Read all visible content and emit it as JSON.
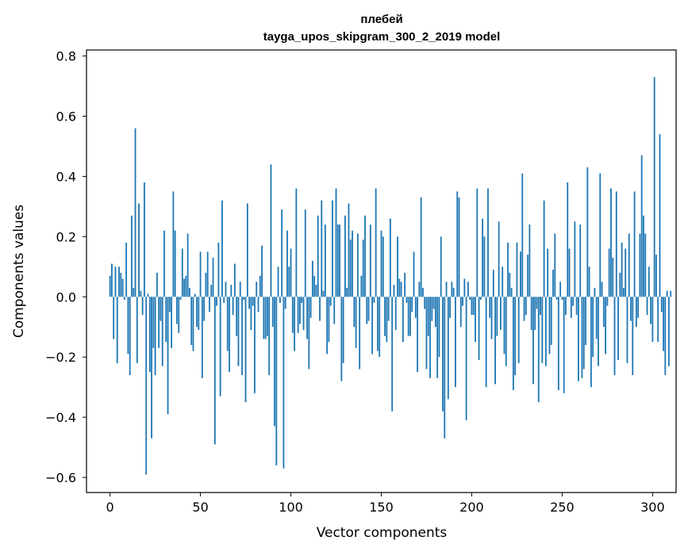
{
  "chart_data": {
    "type": "bar",
    "title": "плебей",
    "subtitle": "tayga_upos_skipgram_300_2_2019 model",
    "xlabel": "Vector components",
    "ylabel": "Components values",
    "xlim": [
      -13,
      313
    ],
    "ylim": [
      -0.65,
      0.82
    ],
    "xticks": [
      0,
      50,
      100,
      150,
      200,
      250,
      300
    ],
    "yticks": [
      -0.6,
      -0.4,
      -0.2,
      0.0,
      0.2,
      0.4,
      0.6,
      0.8
    ],
    "ytick_labels": [
      "−0.6",
      "−0.4",
      "−0.2",
      "0.0",
      "0.2",
      "0.4",
      "0.6",
      "0.8"
    ],
    "xtick_labels": [
      "0",
      "50",
      "100",
      "150",
      "200",
      "250",
      "300"
    ],
    "bar_color": "#1f77b4",
    "values": [
      0.07,
      0.11,
      -0.14,
      0.1,
      -0.22,
      0.1,
      0.08,
      0.06,
      -0.01,
      0.18,
      -0.19,
      -0.26,
      0.27,
      0.03,
      0.56,
      -0.22,
      0.31,
      0.02,
      -0.06,
      0.38,
      -0.59,
      0.01,
      -0.25,
      -0.47,
      -0.17,
      -0.26,
      0.08,
      -0.17,
      -0.08,
      -0.23,
      0.22,
      -0.15,
      -0.39,
      -0.05,
      -0.17,
      0.35,
      0.22,
      -0.09,
      -0.12,
      -0.01,
      0.16,
      0.06,
      0.07,
      0.21,
      0.03,
      -0.16,
      -0.18,
      0.01,
      -0.1,
      -0.11,
      0.15,
      -0.27,
      -0.08,
      0.08,
      0.15,
      -0.05,
      0.04,
      0.13,
      -0.49,
      -0.03,
      0.18,
      -0.33,
      0.32,
      -0.02,
      0.05,
      -0.18,
      -0.25,
      0.04,
      -0.06,
      0.11,
      -0.13,
      -0.23,
      0.05,
      -0.26,
      -0.01,
      -0.35,
      0.31,
      -0.04,
      -0.11,
      -0.03,
      -0.32,
      0.05,
      -0.05,
      0.07,
      0.17,
      -0.14,
      -0.14,
      -0.13,
      -0.26,
      0.44,
      -0.1,
      -0.43,
      -0.56,
      0.1,
      -0.02,
      0.29,
      -0.57,
      -0.04,
      0.22,
      0.1,
      0.16,
      -0.12,
      -0.18,
      0.36,
      -0.12,
      -0.09,
      -0.02,
      -0.11,
      0.29,
      -0.14,
      -0.24,
      -0.07,
      0.12,
      0.07,
      0.04,
      0.27,
      -0.08,
      0.32,
      0.02,
      0.24,
      -0.19,
      -0.15,
      -0.03,
      0.32,
      -0.09,
      0.36,
      0.24,
      0.24,
      -0.28,
      -0.22,
      0.27,
      0.03,
      0.31,
      0.19,
      0.22,
      -0.1,
      -0.17,
      0.21,
      -0.24,
      0.07,
      0.19,
      0.27,
      -0.09,
      -0.08,
      0.24,
      -0.19,
      -0.02,
      0.36,
      -0.18,
      -0.2,
      0.22,
      0.2,
      -0.13,
      -0.15,
      -0.08,
      0.26,
      -0.38,
      0.04,
      -0.11,
      0.2,
      0.06,
      0.05,
      -0.15,
      0.08,
      -0.02,
      -0.13,
      -0.13,
      -0.05,
      0.15,
      -0.07,
      -0.25,
      0.05,
      0.33,
      0.03,
      -0.04,
      -0.24,
      -0.13,
      -0.27,
      -0.08,
      -0.04,
      -0.1,
      -0.27,
      -0.2,
      0.2,
      -0.38,
      -0.47,
      0.05,
      -0.34,
      -0.07,
      0.05,
      0.03,
      -0.3,
      0.35,
      0.33,
      -0.1,
      -0.03,
      0.06,
      -0.41,
      0.05,
      -0.01,
      -0.06,
      -0.06,
      -0.15,
      0.36,
      -0.21,
      -0.01,
      0.26,
      0.2,
      -0.3,
      0.36,
      -0.07,
      -0.14,
      0.09,
      -0.29,
      -0.13,
      0.25,
      -0.11,
      0.1,
      -0.19,
      -0.23,
      0.18,
      0.08,
      0.03,
      -0.31,
      -0.26,
      0.18,
      -0.22,
      0.15,
      0.41,
      -0.08,
      -0.06,
      0.14,
      0.24,
      -0.11,
      -0.29,
      -0.11,
      -0.04,
      -0.35,
      -0.06,
      -0.22,
      0.32,
      -0.23,
      0.16,
      -0.19,
      -0.16,
      0.09,
      0.21,
      -0.01,
      -0.31,
      0.05,
      -0.01,
      -0.32,
      -0.06,
      0.38,
      0.16,
      -0.07,
      -0.03,
      0.25,
      -0.06,
      -0.28,
      0.24,
      -0.27,
      -0.24,
      -0.16,
      0.43,
      0.1,
      -0.3,
      -0.2,
      0.03,
      -0.14,
      -0.23,
      0.41,
      0.05,
      -0.1,
      -0.19,
      -0.03,
      0.16,
      0.36,
      0.13,
      -0.26,
      0.35,
      -0.21,
      0.08,
      0.18,
      0.03,
      0.16,
      -0.22,
      0.21,
      -0.08,
      -0.26,
      0.35,
      -0.1,
      -0.07,
      0.21,
      0.47,
      0.27,
      0.21,
      -0.06,
      0.1,
      -0.09,
      -0.15,
      0.73,
      0.14,
      -0.15,
      0.54,
      -0.05,
      -0.18,
      -0.26,
      0.02,
      -0.23,
      0.02
    ]
  }
}
